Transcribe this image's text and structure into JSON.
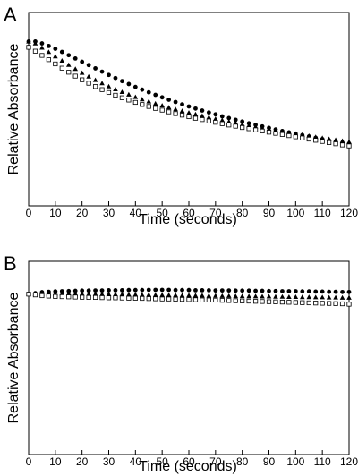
{
  "chart_data": [
    {
      "type": "scatter",
      "panel": "A",
      "xlabel": "Time (seconds)",
      "ylabel": "Relative Absorbance",
      "xlim": [
        0,
        120
      ],
      "xticks": [
        0,
        10,
        20,
        30,
        40,
        50,
        60,
        70,
        80,
        90,
        100,
        110,
        120
      ],
      "ylim": [
        0,
        1
      ],
      "yticks_shown": false,
      "series": [
        {
          "marker": "filled-circle",
          "x": [
            0,
            2.5,
            5,
            7.5,
            10,
            12.5,
            15,
            17.5,
            20,
            22.5,
            25,
            27.5,
            30,
            32.5,
            35,
            37.5,
            40,
            42.5,
            45,
            47.5,
            50,
            52.5,
            55,
            57.5,
            60,
            62.5,
            65,
            67.5,
            70,
            72.5,
            75,
            77.5,
            80,
            82.5,
            85,
            87.5,
            90,
            92.5,
            95,
            97.5,
            100,
            102.5,
            105,
            107.5,
            110,
            112.5,
            115,
            117.5,
            120
          ],
          "values": [
            0.85,
            0.85,
            0.84,
            0.827,
            0.812,
            0.796,
            0.779,
            0.762,
            0.745,
            0.728,
            0.711,
            0.694,
            0.677,
            0.661,
            0.645,
            0.63,
            0.615,
            0.601,
            0.587,
            0.574,
            0.561,
            0.549,
            0.537,
            0.525,
            0.514,
            0.503,
            0.493,
            0.483,
            0.473,
            0.463,
            0.454,
            0.445,
            0.436,
            0.427,
            0.419,
            0.411,
            0.403,
            0.395,
            0.387,
            0.38,
            0.373,
            0.366,
            0.359,
            0.352,
            0.345,
            0.338,
            0.331,
            0.325,
            0.32
          ]
        },
        {
          "marker": "filled-triangle",
          "x": [
            0,
            2.5,
            5,
            7.5,
            10,
            12.5,
            15,
            17.5,
            20,
            22.5,
            25,
            27.5,
            30,
            32.5,
            35,
            37.5,
            40,
            42.5,
            45,
            47.5,
            50,
            52.5,
            55,
            57.5,
            60,
            62.5,
            65,
            67.5,
            70,
            72.5,
            75,
            77.5,
            80,
            82.5,
            85,
            87.5,
            90,
            92.5,
            95,
            97.5,
            100,
            102.5,
            105,
            107.5,
            110,
            112.5,
            115,
            117.5,
            120
          ],
          "values": [
            0.85,
            0.84,
            0.818,
            0.796,
            0.773,
            0.751,
            0.729,
            0.708,
            0.688,
            0.669,
            0.651,
            0.634,
            0.618,
            0.603,
            0.589,
            0.576,
            0.563,
            0.551,
            0.54,
            0.529,
            0.519,
            0.509,
            0.5,
            0.491,
            0.482,
            0.474,
            0.466,
            0.458,
            0.45,
            0.443,
            0.436,
            0.429,
            0.422,
            0.416,
            0.409,
            0.403,
            0.397,
            0.391,
            0.385,
            0.379,
            0.373,
            0.368,
            0.362,
            0.356,
            0.351,
            0.346,
            0.341,
            0.336,
            0.331
          ]
        },
        {
          "marker": "open-square",
          "x": [
            0,
            2.5,
            5,
            7.5,
            10,
            12.5,
            15,
            17.5,
            20,
            22.5,
            25,
            27.5,
            30,
            32.5,
            35,
            37.5,
            40,
            42.5,
            45,
            47.5,
            50,
            52.5,
            55,
            57.5,
            60,
            62.5,
            65,
            67.5,
            70,
            72.5,
            75,
            77.5,
            80,
            82.5,
            85,
            87.5,
            90,
            92.5,
            95,
            97.5,
            100,
            102.5,
            105,
            107.5,
            110,
            112.5,
            115,
            117.5,
            120
          ],
          "values": [
            0.82,
            0.8,
            0.778,
            0.756,
            0.734,
            0.712,
            0.691,
            0.671,
            0.652,
            0.634,
            0.617,
            0.601,
            0.586,
            0.572,
            0.559,
            0.547,
            0.535,
            0.524,
            0.514,
            0.504,
            0.495,
            0.486,
            0.477,
            0.469,
            0.461,
            0.453,
            0.446,
            0.439,
            0.432,
            0.425,
            0.418,
            0.412,
            0.405,
            0.399,
            0.393,
            0.387,
            0.381,
            0.375,
            0.369,
            0.363,
            0.357,
            0.351,
            0.345,
            0.339,
            0.333,
            0.327,
            0.321,
            0.315,
            0.31
          ]
        }
      ]
    },
    {
      "type": "scatter",
      "panel": "B",
      "xlabel": "Time (seconds)",
      "ylabel": "Relative Absorbance",
      "xlim": [
        0,
        120
      ],
      "xticks": [
        0,
        10,
        20,
        30,
        40,
        50,
        60,
        70,
        80,
        90,
        100,
        110,
        120
      ],
      "ylim": [
        0,
        1
      ],
      "yticks_shown": false,
      "series": [
        {
          "marker": "filled-circle",
          "x": [
            0,
            2.5,
            5,
            7.5,
            10,
            12.5,
            15,
            17.5,
            20,
            22.5,
            25,
            27.5,
            30,
            32.5,
            35,
            37.5,
            40,
            42.5,
            45,
            47.5,
            50,
            52.5,
            55,
            57.5,
            60,
            62.5,
            65,
            67.5,
            70,
            72.5,
            75,
            77.5,
            80,
            82.5,
            85,
            87.5,
            90,
            92.5,
            95,
            97.5,
            100,
            102.5,
            105,
            107.5,
            110,
            112.5,
            115,
            117.5,
            120
          ],
          "values": [
            0.83,
            0.835,
            0.84,
            0.842,
            0.844,
            0.845,
            0.846,
            0.847,
            0.848,
            0.848,
            0.849,
            0.849,
            0.85,
            0.85,
            0.85,
            0.851,
            0.851,
            0.851,
            0.852,
            0.852,
            0.852,
            0.852,
            0.851,
            0.851,
            0.851,
            0.85,
            0.85,
            0.85,
            0.849,
            0.849,
            0.849,
            0.848,
            0.848,
            0.848,
            0.847,
            0.847,
            0.846,
            0.846,
            0.845,
            0.845,
            0.845,
            0.844,
            0.844,
            0.843,
            0.843,
            0.842,
            0.842,
            0.841,
            0.841
          ]
        },
        {
          "marker": "filled-triangle",
          "x": [
            0,
            2.5,
            5,
            7.5,
            10,
            12.5,
            15,
            17.5,
            20,
            22.5,
            25,
            27.5,
            30,
            32.5,
            35,
            37.5,
            40,
            42.5,
            45,
            47.5,
            50,
            52.5,
            55,
            57.5,
            60,
            62.5,
            65,
            67.5,
            70,
            72.5,
            75,
            77.5,
            80,
            82.5,
            85,
            87.5,
            90,
            92.5,
            95,
            97.5,
            100,
            102.5,
            105,
            107.5,
            110,
            112.5,
            115,
            117.5,
            120
          ],
          "values": [
            0.83,
            0.832,
            0.833,
            0.833,
            0.833,
            0.833,
            0.833,
            0.832,
            0.832,
            0.831,
            0.831,
            0.83,
            0.83,
            0.829,
            0.829,
            0.828,
            0.828,
            0.827,
            0.827,
            0.826,
            0.826,
            0.825,
            0.825,
            0.824,
            0.824,
            0.823,
            0.823,
            0.822,
            0.822,
            0.821,
            0.821,
            0.82,
            0.82,
            0.819,
            0.819,
            0.818,
            0.818,
            0.817,
            0.817,
            0.816,
            0.816,
            0.815,
            0.815,
            0.814,
            0.814,
            0.813,
            0.813,
            0.812,
            0.812
          ]
        },
        {
          "marker": "open-square",
          "x": [
            0,
            2.5,
            5,
            7.5,
            10,
            12.5,
            15,
            17.5,
            20,
            22.5,
            25,
            27.5,
            30,
            32.5,
            35,
            37.5,
            40,
            42.5,
            45,
            47.5,
            50,
            52.5,
            55,
            57.5,
            60,
            62.5,
            65,
            67.5,
            70,
            72.5,
            75,
            77.5,
            80,
            82.5,
            85,
            87.5,
            90,
            92.5,
            95,
            97.5,
            100,
            102.5,
            105,
            107.5,
            110,
            112.5,
            115,
            117.5,
            120
          ],
          "values": [
            0.83,
            0.826,
            0.822,
            0.82,
            0.818,
            0.817,
            0.816,
            0.815,
            0.814,
            0.813,
            0.813,
            0.812,
            0.811,
            0.811,
            0.81,
            0.809,
            0.809,
            0.808,
            0.807,
            0.806,
            0.805,
            0.805,
            0.804,
            0.803,
            0.802,
            0.801,
            0.8,
            0.8,
            0.799,
            0.798,
            0.797,
            0.796,
            0.795,
            0.794,
            0.793,
            0.792,
            0.791,
            0.79,
            0.789,
            0.788,
            0.787,
            0.786,
            0.785,
            0.784,
            0.783,
            0.782,
            0.781,
            0.78,
            0.778
          ]
        }
      ]
    }
  ]
}
